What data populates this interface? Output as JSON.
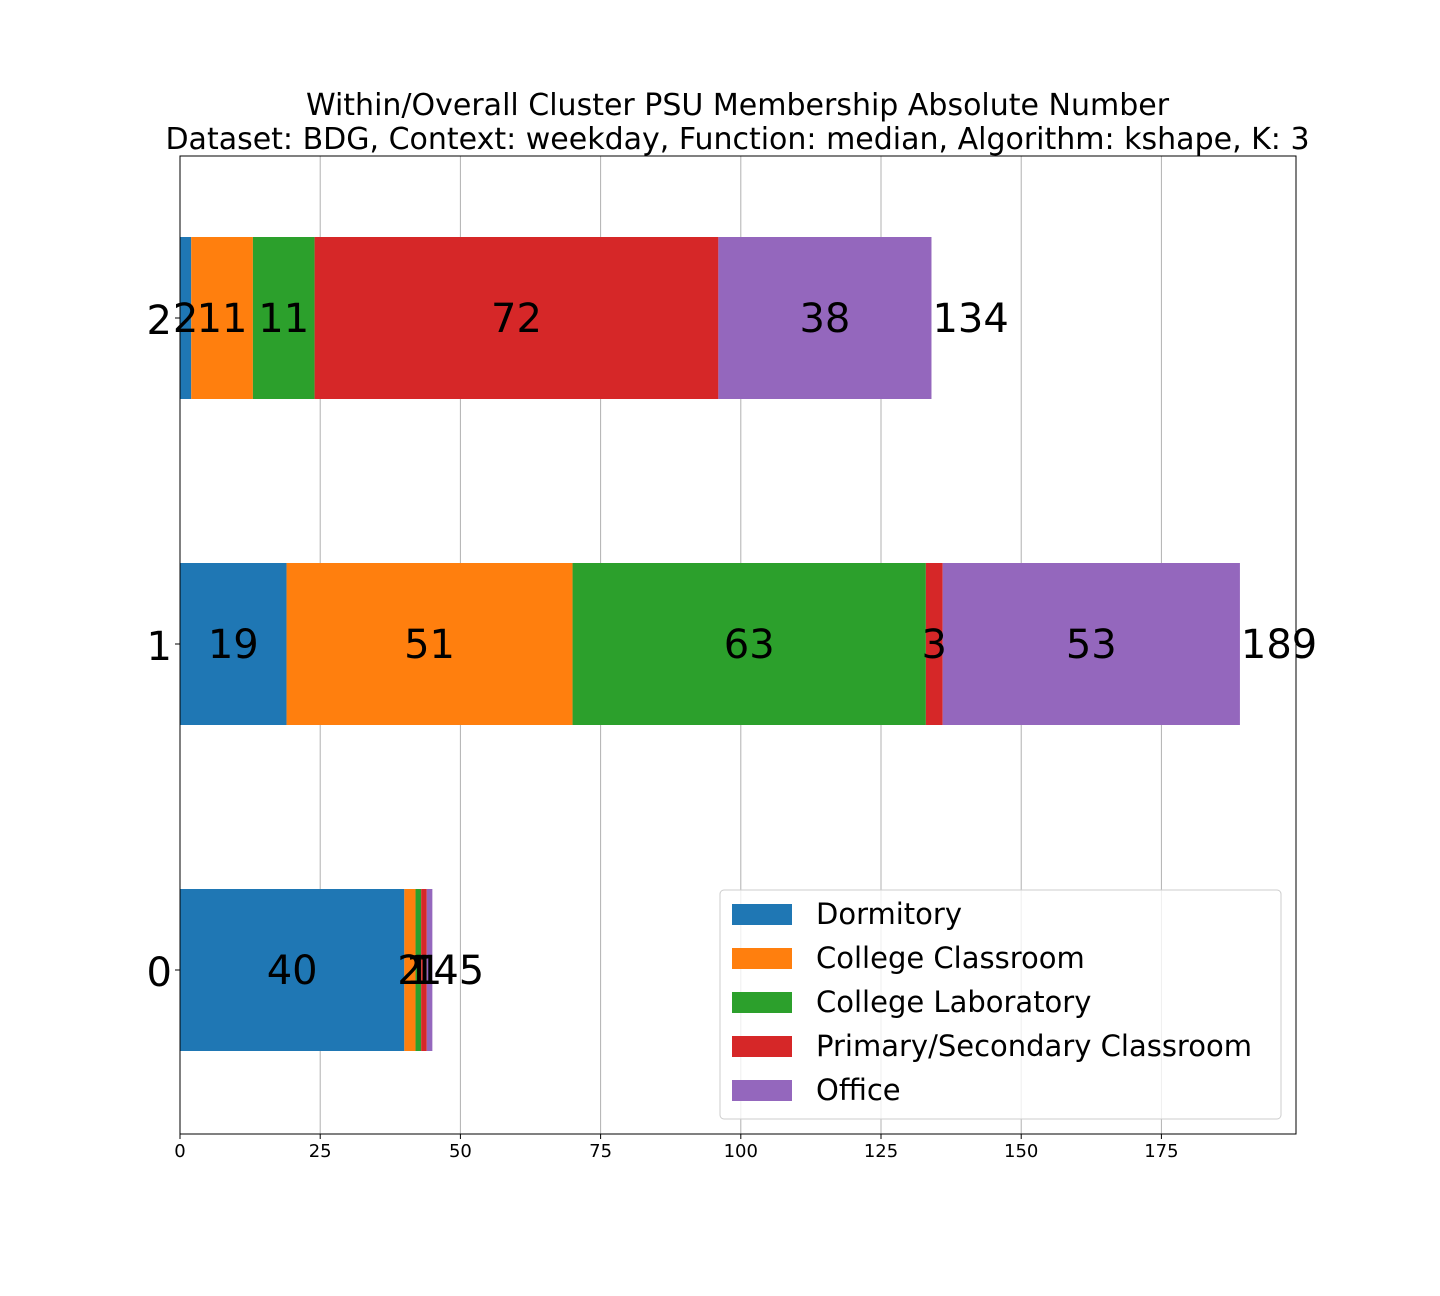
{
  "chart_data": {
    "type": "bar",
    "orientation": "horizontal",
    "stacked": true,
    "title": "Within/Overall Cluster PSU Membership Absolute Number",
    "subtitle": "Dataset: BDG, Context: weekday, Function: median, Algorithm: kshape, K: 3",
    "categories": [
      "0",
      "1",
      "2"
    ],
    "series": [
      {
        "name": "Dormitory",
        "color": "#1f77b4",
        "values": [
          40,
          19,
          2
        ]
      },
      {
        "name": "College Classroom",
        "color": "#ff7f0e",
        "values": [
          2,
          51,
          11
        ]
      },
      {
        "name": "College Laboratory",
        "color": "#2ca02c",
        "values": [
          1,
          63,
          11
        ]
      },
      {
        "name": "Primary/Secondary Classroom",
        "color": "#d62728",
        "values": [
          1,
          3,
          72
        ]
      },
      {
        "name": "Office",
        "color": "#9467bd",
        "values": [
          1,
          53,
          38
        ]
      }
    ],
    "totals": [
      45,
      189,
      134
    ],
    "xlim": [
      0,
      199
    ],
    "xticks": [
      0,
      25,
      50,
      75,
      100,
      125,
      150,
      175
    ],
    "grid": "x",
    "legend": "lower-right"
  }
}
